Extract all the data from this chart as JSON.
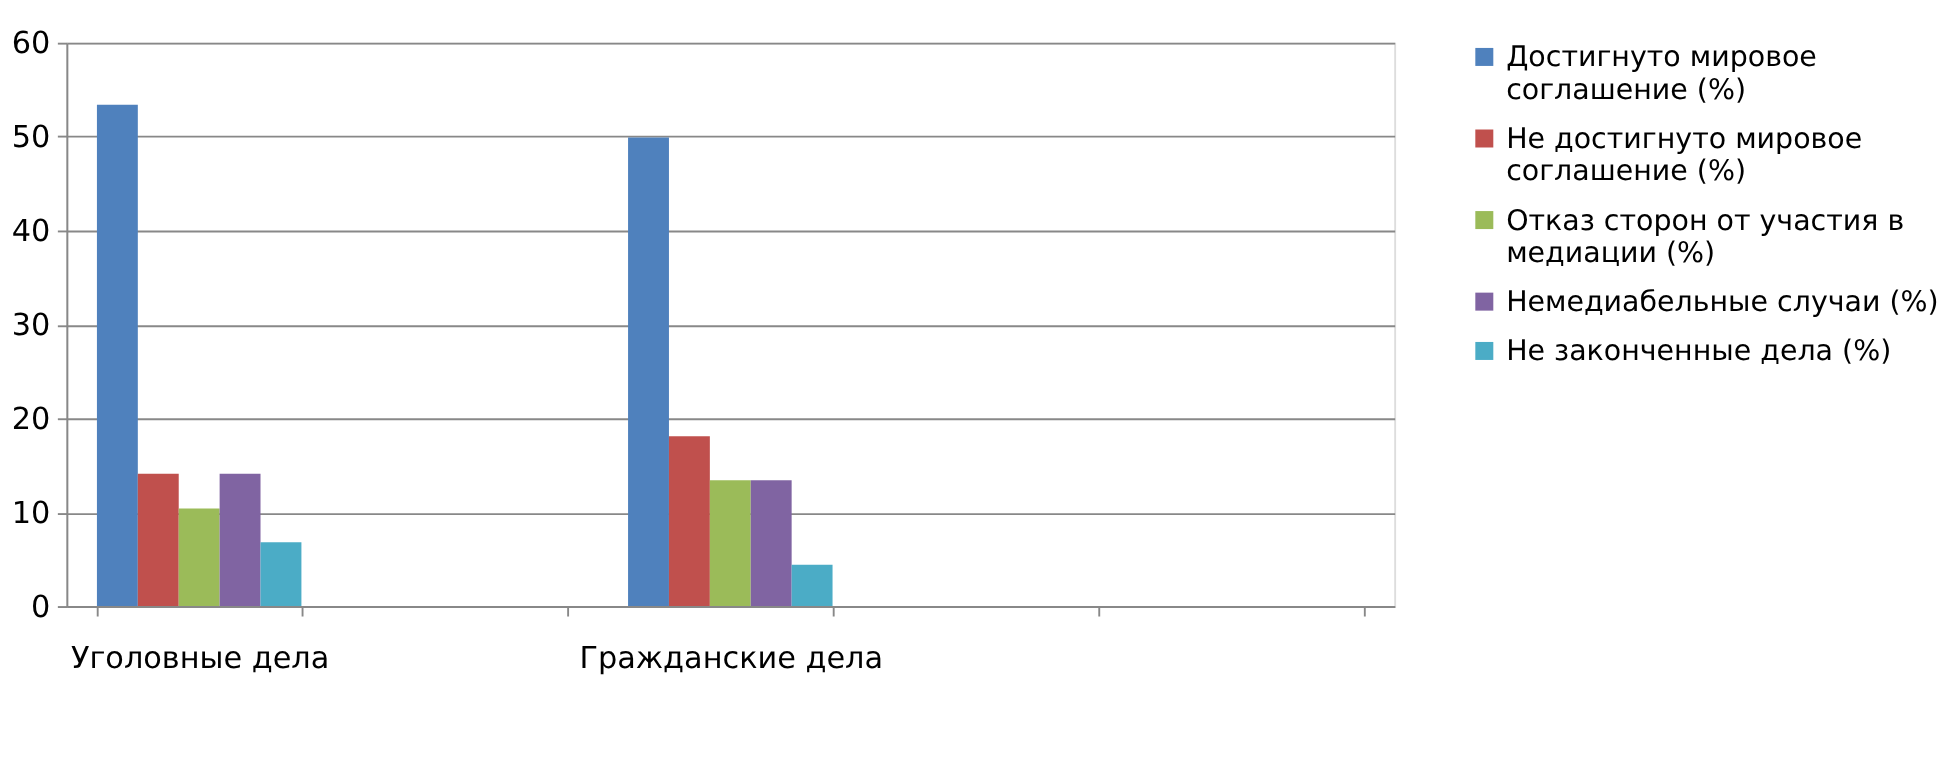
{
  "chart_data": {
    "type": "bar",
    "categories": [
      "Уголовные дела",
      null,
      "Гражданские дела",
      null,
      null
    ],
    "series": [
      {
        "name": "Достигнуто мировое соглашение (%)",
        "color": "#4f81bd",
        "values": [
          53.4,
          null,
          49.9,
          null,
          null
        ]
      },
      {
        "name": "Не достигнуто мировое соглашение (%)",
        "color": "#c0504d",
        "values": [
          14.1,
          null,
          18.1,
          null,
          null
        ]
      },
      {
        "name": "Отказ сторон от участия в медиации (%)",
        "color": "#9bbb59",
        "values": [
          10.4,
          null,
          13.4,
          null,
          null
        ]
      },
      {
        "name": "Немедиабельные случаи (%)",
        "color": "#8064a2",
        "values": [
          14.1,
          null,
          13.4,
          null,
          null
        ]
      },
      {
        "name": "Не законченные дела (%)",
        "color": "#4bacc6",
        "values": [
          6.8,
          null,
          4.4,
          null,
          null
        ]
      }
    ],
    "ylim": [
      0,
      60
    ],
    "yticks": [
      0,
      10,
      20,
      30,
      40,
      50,
      60
    ],
    "grid": "y",
    "legend": "right"
  }
}
